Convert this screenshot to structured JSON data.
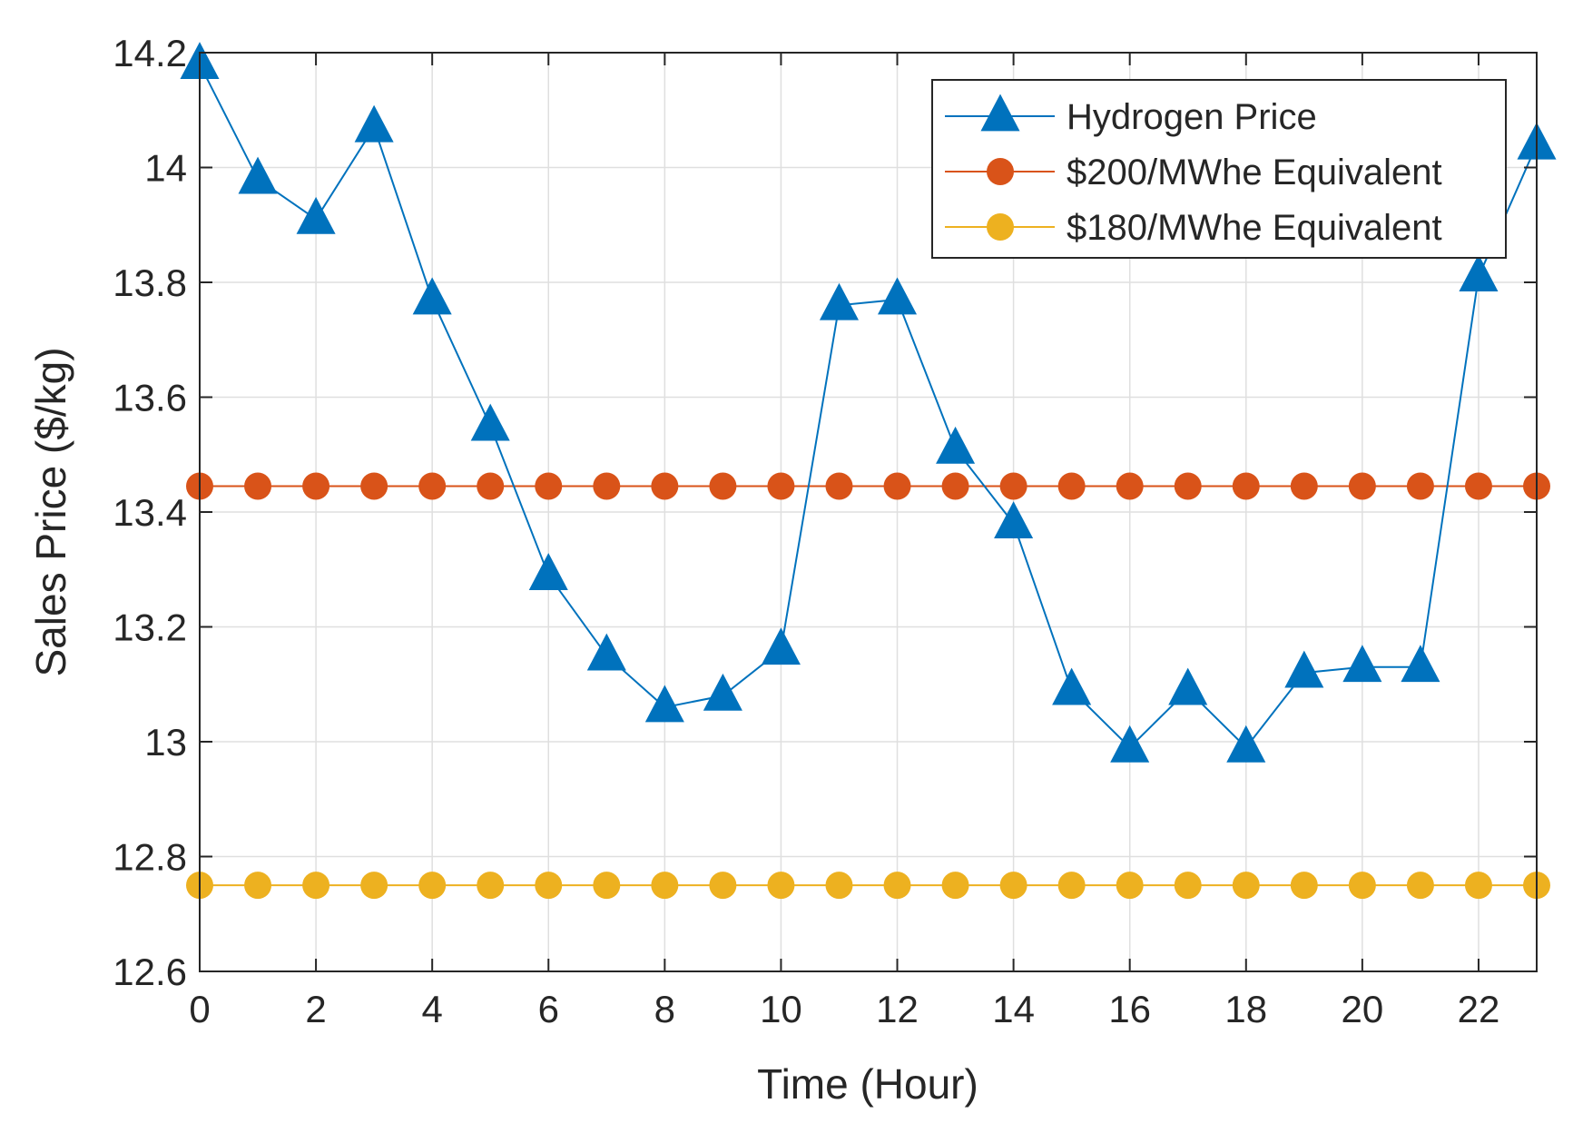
{
  "chart_data": {
    "type": "line",
    "title": "",
    "xlabel": "Time (Hour)",
    "ylabel": "Sales Price ($/kg)",
    "xlim": [
      0,
      23
    ],
    "ylim": [
      12.6,
      14.2
    ],
    "xticks": [
      0,
      2,
      4,
      6,
      8,
      10,
      12,
      14,
      16,
      18,
      20,
      22
    ],
    "xtick_labels": [
      "0",
      "2",
      "4",
      "6",
      "8",
      "10",
      "12",
      "14",
      "16",
      "18",
      "20",
      "22"
    ],
    "yticks": [
      12.6,
      12.8,
      13,
      13.2,
      13.4,
      13.6,
      13.8,
      14,
      14.2
    ],
    "ytick_labels": [
      "12.6",
      "12.8",
      "13",
      "13.2",
      "13.4",
      "13.6",
      "13.8",
      "14",
      "14.2"
    ],
    "grid": true,
    "legend_position": "top-right",
    "x": [
      0,
      1,
      2,
      3,
      4,
      5,
      6,
      7,
      8,
      9,
      10,
      11,
      12,
      13,
      14,
      15,
      16,
      17,
      18,
      19,
      20,
      21,
      22,
      23
    ],
    "series": [
      {
        "name": "Hydrogen Price",
        "color": "#0072BD",
        "marker": "triangle",
        "values": [
          14.18,
          13.98,
          13.91,
          14.07,
          13.77,
          13.55,
          13.29,
          13.15,
          13.06,
          13.08,
          13.16,
          13.76,
          13.77,
          13.51,
          13.38,
          13.09,
          12.99,
          13.09,
          12.99,
          13.12,
          13.13,
          13.13,
          13.81,
          14.04
        ]
      },
      {
        "name": "$200/MWhe Equivalent",
        "color": "#D95319",
        "marker": "circle",
        "values": [
          13.445,
          13.445,
          13.445,
          13.445,
          13.445,
          13.445,
          13.445,
          13.445,
          13.445,
          13.445,
          13.445,
          13.445,
          13.445,
          13.445,
          13.445,
          13.445,
          13.445,
          13.445,
          13.445,
          13.445,
          13.445,
          13.445,
          13.445,
          13.445
        ]
      },
      {
        "name": "$180/MWhe Equivalent",
        "color": "#EDB120",
        "marker": "circle",
        "values": [
          12.75,
          12.75,
          12.75,
          12.75,
          12.75,
          12.75,
          12.75,
          12.75,
          12.75,
          12.75,
          12.75,
          12.75,
          12.75,
          12.75,
          12.75,
          12.75,
          12.75,
          12.75,
          12.75,
          12.75,
          12.75,
          12.75,
          12.75,
          12.75
        ]
      }
    ]
  }
}
